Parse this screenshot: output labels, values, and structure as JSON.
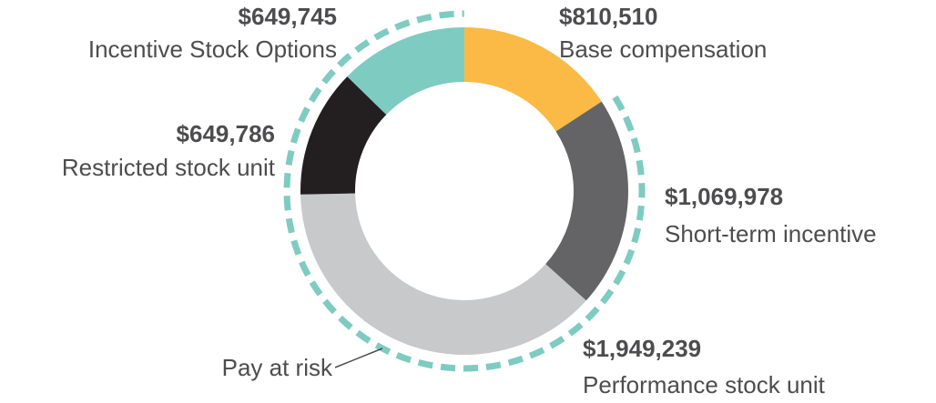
{
  "chart_data": {
    "type": "pie",
    "donut": true,
    "slices": [
      {
        "label": "Base compensation",
        "value": 810510,
        "value_label": "$810,510",
        "color": "#FBBA45"
      },
      {
        "label": "Short-term incentive",
        "value": 1069978,
        "value_label": "$1,069,978",
        "color": "#646466"
      },
      {
        "label": "Performance stock unit",
        "value": 1949239,
        "value_label": "$1,949,239",
        "color": "#C8C9CB"
      },
      {
        "label": "Restricted stock unit",
        "value": 649786,
        "value_label": "$649,786",
        "color": "#231F20"
      },
      {
        "label": "Incentive Stock Options",
        "value": 649745,
        "value_label": "$649,745",
        "color": "#7ECBC2"
      }
    ],
    "annotation": {
      "label": "Pay at risk",
      "covers": [
        "Short-term incentive",
        "Performance stock unit",
        "Restricted stock unit",
        "Incentive Stock Options"
      ],
      "color": "#7ECBC2",
      "style": "dashed-arc"
    }
  }
}
